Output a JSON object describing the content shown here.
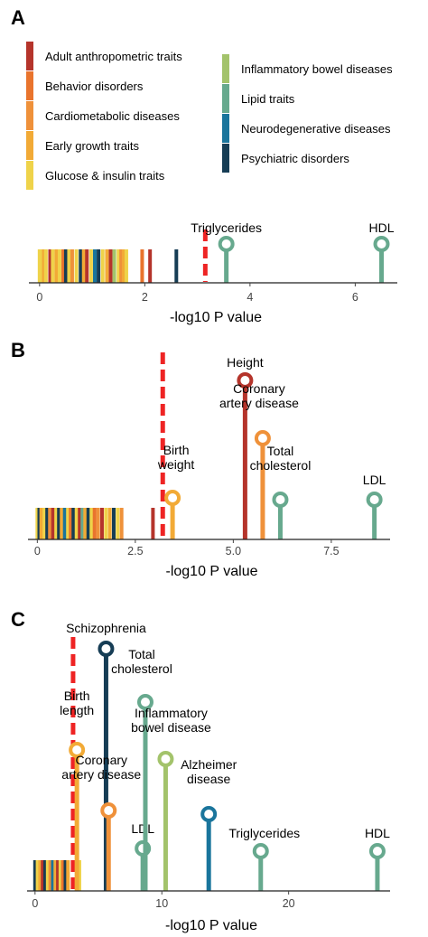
{
  "colors": {
    "Adult anthropometric traits": "#b5342b",
    "Behavior disorders": "#e9742d",
    "Cardiometabolic diseases": "#ef913a",
    "Early growth traits": "#f2aa36",
    "Glucose & insulin traits": "#efd34a",
    "Inflammatory bowel diseases": "#a3c36b",
    "Lipid traits": "#67a98e",
    "Neurodegenerative diseases": "#1a759c",
    "Psychiatric disorders": "#163d55",
    "threshold": "#ee2424"
  },
  "legend": {
    "left": [
      "Adult anthropometric traits",
      "Behavior disorders",
      "Cardiometabolic diseases",
      "Early growth traits",
      "Glucose & insulin traits"
    ],
    "right": [
      "Inflammatory bowel diseases",
      "Lipid traits",
      "Neurodegenerative diseases",
      "Psychiatric disorders"
    ]
  },
  "chart_data": [
    {
      "panel": "A",
      "type": "scatter",
      "xlabel": "-log10 P value",
      "xticks": [
        0,
        2,
        4,
        6
      ],
      "xlim": [
        -0.1,
        6.8
      ],
      "threshold": 3.15,
      "background_bars": [
        {
          "x": 0.0,
          "category": "Glucose & insulin traits"
        },
        {
          "x": 0.04,
          "category": "Glucose & insulin traits"
        },
        {
          "x": 0.08,
          "category": "Early growth traits"
        },
        {
          "x": 0.12,
          "category": "Glucose & insulin traits"
        },
        {
          "x": 0.2,
          "category": "Adult anthropometric traits"
        },
        {
          "x": 0.25,
          "category": "Glucose & insulin traits"
        },
        {
          "x": 0.32,
          "category": "Early growth traits"
        },
        {
          "x": 0.38,
          "category": "Glucose & insulin traits"
        },
        {
          "x": 0.45,
          "category": "Behavior disorders"
        },
        {
          "x": 0.5,
          "category": "Psychiatric disorders"
        },
        {
          "x": 0.56,
          "category": "Glucose & insulin traits"
        },
        {
          "x": 0.62,
          "category": "Cardiometabolic diseases"
        },
        {
          "x": 0.7,
          "category": "Glucose & insulin traits"
        },
        {
          "x": 0.78,
          "category": "Psychiatric disorders"
        },
        {
          "x": 0.84,
          "category": "Early growth traits"
        },
        {
          "x": 0.9,
          "category": "Adult anthropometric traits"
        },
        {
          "x": 0.98,
          "category": "Glucose & insulin traits"
        },
        {
          "x": 1.05,
          "category": "Neurodegenerative diseases"
        },
        {
          "x": 1.12,
          "category": "Psychiatric disorders"
        },
        {
          "x": 1.2,
          "category": "Glucose & insulin traits"
        },
        {
          "x": 1.28,
          "category": "Early growth traits"
        },
        {
          "x": 1.35,
          "category": "Adult anthropometric traits"
        },
        {
          "x": 1.42,
          "category": "Inflammatory bowel diseases"
        },
        {
          "x": 1.5,
          "category": "Glucose & insulin traits"
        },
        {
          "x": 1.55,
          "category": "Cardiometabolic diseases"
        },
        {
          "x": 1.6,
          "category": "Early growth traits"
        },
        {
          "x": 1.65,
          "category": "Glucose & insulin traits"
        },
        {
          "x": 1.95,
          "category": "Behavior disorders"
        },
        {
          "x": 2.1,
          "category": "Adult anthropometric traits"
        },
        {
          "x": 2.6,
          "category": "Psychiatric disorders"
        }
      ],
      "lollipops": [
        {
          "x": 3.55,
          "category": "Lipid traits",
          "label": "Triglycerides"
        },
        {
          "x": 6.5,
          "category": "Lipid traits",
          "label": "HDL"
        }
      ]
    },
    {
      "panel": "B",
      "type": "scatter",
      "xlabel": "-log10 P value",
      "xticks": [
        0,
        2.5,
        5.0,
        7.5
      ],
      "xlim": [
        -0.1,
        9.0
      ],
      "threshold": 3.2,
      "background_bars": [
        {
          "x": 0.0,
          "category": "Glucose & insulin traits"
        },
        {
          "x": 0.05,
          "category": "Psychiatric disorders"
        },
        {
          "x": 0.1,
          "category": "Early growth traits"
        },
        {
          "x": 0.18,
          "category": "Glucose & insulin traits"
        },
        {
          "x": 0.25,
          "category": "Psychiatric disorders"
        },
        {
          "x": 0.32,
          "category": "Cardiometabolic diseases"
        },
        {
          "x": 0.4,
          "category": "Adult anthropometric traits"
        },
        {
          "x": 0.48,
          "category": "Glucose & insulin traits"
        },
        {
          "x": 0.55,
          "category": "Psychiatric disorders"
        },
        {
          "x": 0.62,
          "category": "Early growth traits"
        },
        {
          "x": 0.7,
          "category": "Neurodegenerative diseases"
        },
        {
          "x": 0.78,
          "category": "Glucose & insulin traits"
        },
        {
          "x": 0.85,
          "category": "Behavior disorders"
        },
        {
          "x": 0.92,
          "category": "Psychiatric disorders"
        },
        {
          "x": 1.0,
          "category": "Glucose & insulin traits"
        },
        {
          "x": 1.08,
          "category": "Adult anthropometric traits"
        },
        {
          "x": 1.15,
          "category": "Lipid traits"
        },
        {
          "x": 1.22,
          "category": "Early growth traits"
        },
        {
          "x": 1.3,
          "category": "Psychiatric disorders"
        },
        {
          "x": 1.38,
          "category": "Glucose & insulin traits"
        },
        {
          "x": 1.46,
          "category": "Behavior disorders"
        },
        {
          "x": 1.55,
          "category": "Cardiometabolic diseases"
        },
        {
          "x": 1.65,
          "category": "Adult anthropometric traits"
        },
        {
          "x": 1.75,
          "category": "Glucose & insulin traits"
        },
        {
          "x": 1.85,
          "category": "Early growth traits"
        },
        {
          "x": 1.95,
          "category": "Psychiatric disorders"
        },
        {
          "x": 2.05,
          "category": "Glucose & insulin traits"
        },
        {
          "x": 2.15,
          "category": "Cardiometabolic diseases"
        },
        {
          "x": 2.95,
          "category": "Adult anthropometric traits"
        }
      ],
      "lollipops": [
        {
          "x": 3.45,
          "category": "Early growth traits",
          "label": "Birth\nweight"
        },
        {
          "x": 5.3,
          "category": "Adult anthropometric traits",
          "label": "Height"
        },
        {
          "x": 5.75,
          "category": "Cardiometabolic diseases",
          "label": "Coronary\nartery disease"
        },
        {
          "x": 6.2,
          "category": "Lipid traits",
          "label": "Total\ncholesterol"
        },
        {
          "x": 8.6,
          "category": "Lipid traits",
          "label": "LDL"
        }
      ]
    },
    {
      "panel": "C",
      "type": "scatter",
      "xlabel": "-log10 P value",
      "xticks": [
        0,
        10,
        20
      ],
      "xlim": [
        -0.2,
        28.0
      ],
      "threshold": 3.0,
      "background_bars": [
        {
          "x": 0.0,
          "category": "Psychiatric disorders"
        },
        {
          "x": 0.2,
          "category": "Glucose & insulin traits"
        },
        {
          "x": 0.4,
          "category": "Early growth traits"
        },
        {
          "x": 0.6,
          "category": "Adult anthropometric traits"
        },
        {
          "x": 0.8,
          "category": "Psychiatric disorders"
        },
        {
          "x": 1.0,
          "category": "Glucose & insulin traits"
        },
        {
          "x": 1.2,
          "category": "Cardiometabolic diseases"
        },
        {
          "x": 1.4,
          "category": "Neurodegenerative diseases"
        },
        {
          "x": 1.6,
          "category": "Early growth traits"
        },
        {
          "x": 1.8,
          "category": "Adult anthropometric traits"
        },
        {
          "x": 2.0,
          "category": "Glucose & insulin traits"
        },
        {
          "x": 2.2,
          "category": "Behavior disorders"
        },
        {
          "x": 2.4,
          "category": "Psychiatric disorders"
        },
        {
          "x": 2.6,
          "category": "Early growth traits"
        },
        {
          "x": 3.5,
          "category": "Glucose & insulin traits"
        }
      ],
      "lollipops": [
        {
          "x": 3.3,
          "category": "Early growth traits",
          "label": "Birth\nlength"
        },
        {
          "x": 5.6,
          "category": "Psychiatric disorders",
          "label": "Schizophrenia"
        },
        {
          "x": 5.8,
          "category": "Cardiometabolic diseases",
          "label": "Coronary\nartery disease"
        },
        {
          "x": 8.5,
          "category": "Lipid traits",
          "label": "LDL"
        },
        {
          "x": 8.7,
          "category": "Lipid traits",
          "label": "Total\ncholesterol"
        },
        {
          "x": 10.3,
          "category": "Inflammatory bowel diseases",
          "label": "Inflammatory\nbowel disease"
        },
        {
          "x": 13.7,
          "category": "Neurodegenerative diseases",
          "label": "Alzheimer\ndisease"
        },
        {
          "x": 17.8,
          "category": "Lipid traits",
          "label": "Triglycerides"
        },
        {
          "x": 27.0,
          "category": "Lipid traits",
          "label": "HDL"
        }
      ]
    }
  ]
}
